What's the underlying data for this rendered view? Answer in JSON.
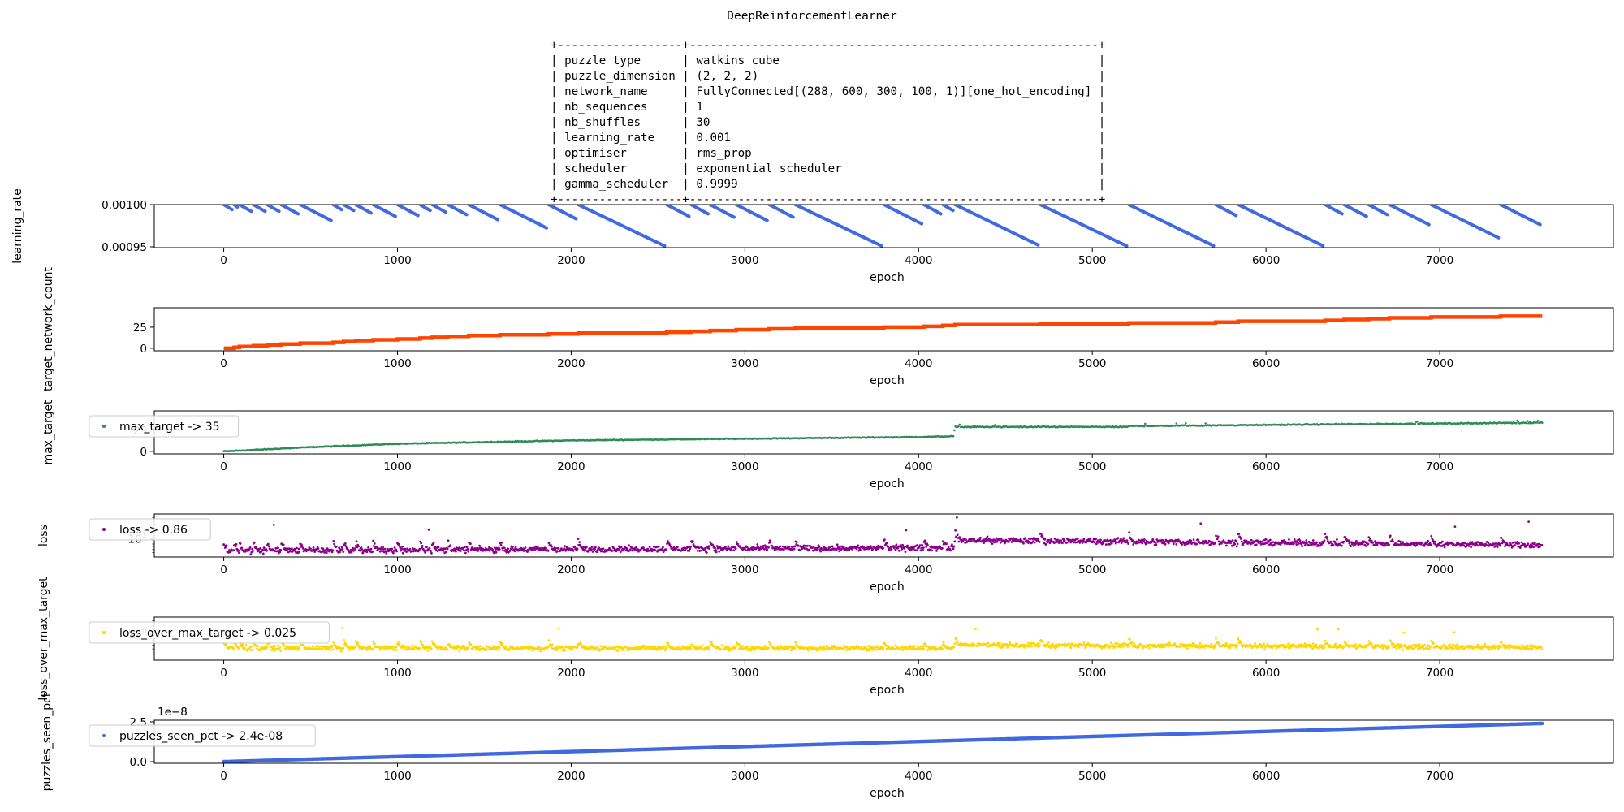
{
  "figure": {
    "title": "DeepReinforcementLearner",
    "params_table": [
      {
        "key": "puzzle_type",
        "value": "watkins_cube"
      },
      {
        "key": "puzzle_dimension",
        "value": "(2, 2, 2)"
      },
      {
        "key": "network_name",
        "value": "FullyConnected[(288, 600, 300, 100, 1)][one_hot_encoding]"
      },
      {
        "key": "nb_sequences",
        "value": "1"
      },
      {
        "key": "nb_shuffles",
        "value": "30"
      },
      {
        "key": "learning_rate",
        "value": "0.001"
      },
      {
        "key": "optimiser",
        "value": "rms_prop"
      },
      {
        "key": "scheduler",
        "value": "exponential_scheduler"
      },
      {
        "key": "gamma_scheduler",
        "value": "0.9999"
      }
    ]
  },
  "colors": {
    "learning_rate": "#4169e1",
    "target_network_count": "#ff4500",
    "max_target": "#2e8b57",
    "loss": "#8b008b",
    "loss_over_max_target": "#ffd700",
    "puzzles_seen_pct": "#4169e1"
  },
  "chart_data": [
    {
      "type": "scatter",
      "ylabel": "learning_rate",
      "xlabel": "epoch",
      "xlim": [
        -400,
        8000
      ],
      "ylim": [
        0.000949,
        0.001
      ],
      "xticks": [
        "0",
        "1000",
        "2000",
        "3000",
        "4000",
        "5000",
        "6000",
        "7000"
      ],
      "yticks": [
        {
          "value": 0.001,
          "label": "0.00100"
        },
        {
          "value": 0.00095,
          "label": "0.00095"
        }
      ],
      "segments": [
        [
          0,
          60
        ],
        [
          60,
          90
        ],
        [
          90,
          170
        ],
        [
          170,
          250
        ],
        [
          250,
          330
        ],
        [
          330,
          440
        ],
        [
          440,
          630
        ],
        [
          630,
          690
        ],
        [
          690,
          760
        ],
        [
          760,
          860
        ],
        [
          860,
          1000
        ],
        [
          1000,
          1130
        ],
        [
          1130,
          1200
        ],
        [
          1200,
          1290
        ],
        [
          1290,
          1410
        ],
        [
          1410,
          1590
        ],
        [
          1590,
          1870
        ],
        [
          1870,
          2040
        ],
        [
          2040,
          2550
        ],
        [
          2550,
          2690
        ],
        [
          2690,
          2800
        ],
        [
          2800,
          2950
        ],
        [
          2950,
          3140
        ],
        [
          3140,
          3290
        ],
        [
          3290,
          3800
        ],
        [
          3800,
          4030
        ],
        [
          4030,
          4140
        ],
        [
          4140,
          4210
        ],
        [
          4210,
          4700
        ],
        [
          4700,
          5210
        ],
        [
          5210,
          5710
        ],
        [
          5710,
          5840
        ],
        [
          5840,
          6340
        ],
        [
          6340,
          6450
        ],
        [
          6450,
          6590
        ],
        [
          6590,
          6710
        ],
        [
          6710,
          6950
        ],
        [
          6950,
          7350
        ],
        [
          7350,
          7590
        ]
      ],
      "legend": null
    },
    {
      "type": "scatter",
      "ylabel": "target_network_count",
      "xlabel": "epoch",
      "xlim": [
        -400,
        8000
      ],
      "ylim": [
        -3,
        48
      ],
      "xticks": [
        "0",
        "1000",
        "2000",
        "3000",
        "4000",
        "5000",
        "6000",
        "7000"
      ],
      "yticks": [
        {
          "value": 25,
          "label": "25"
        },
        {
          "value": 0,
          "label": "0"
        }
      ],
      "steps_at_x": [
        60,
        90,
        170,
        250,
        330,
        440,
        630,
        690,
        760,
        860,
        1000,
        1130,
        1200,
        1290,
        1410,
        1590,
        1870,
        2040,
        2550,
        2690,
        2800,
        2950,
        3140,
        3290,
        3800,
        4030,
        4140,
        4210,
        4700,
        5210,
        5710,
        5840,
        6340,
        6450,
        6590,
        6710,
        6950,
        7350
      ],
      "final_value": 38,
      "legend": null
    },
    {
      "type": "scatter",
      "ylabel": "max_target",
      "xlabel": "epoch",
      "xlim": [
        -400,
        8000
      ],
      "ylim": [
        -3,
        48
      ],
      "xticks": [
        "0",
        "1000",
        "2000",
        "3000",
        "4000",
        "5000",
        "6000",
        "7000"
      ],
      "yticks": [
        {
          "value": 25,
          "label": "25"
        },
        {
          "value": 0,
          "label": "0"
        }
      ],
      "points": [
        [
          0,
          0
        ],
        [
          500,
          5
        ],
        [
          1000,
          9
        ],
        [
          2000,
          13
        ],
        [
          3000,
          15
        ],
        [
          4000,
          17
        ],
        [
          4200,
          18
        ],
        [
          4210,
          29
        ],
        [
          5200,
          29
        ],
        [
          5210,
          30
        ],
        [
          7590,
          34
        ]
      ],
      "legend": "max_target -> 35"
    },
    {
      "type": "scatter",
      "ylabel": "loss",
      "xlabel": "epoch",
      "xlim": [
        -400,
        8000
      ],
      "ylim": [
        3,
        50
      ],
      "log_y": true,
      "xticks": [
        "0",
        "1000",
        "2000",
        "3000",
        "4000",
        "5000",
        "6000",
        "7000"
      ],
      "yticks": [
        {
          "value": 10,
          "label": "10^1"
        }
      ],
      "band_typical": [
        [
          0,
          4.5
        ],
        [
          4200,
          5.5
        ],
        [
          4210,
          9
        ],
        [
          7590,
          6.5
        ]
      ],
      "legend": "loss -> 0.86"
    },
    {
      "type": "scatter",
      "ylabel": "loss_over_max_target",
      "xlabel": "epoch",
      "xlim": [
        -400,
        8000
      ],
      "ylim": [
        0.12,
        4
      ],
      "log_y": true,
      "xticks": [
        "0",
        "1000",
        "2000",
        "3000",
        "4000",
        "5000",
        "6000",
        "7000"
      ],
      "yticks": [
        {
          "value": 1,
          "label": "10^0"
        }
      ],
      "band_typical": [
        [
          0,
          0.32
        ],
        [
          4200,
          0.32
        ],
        [
          4210,
          0.42
        ],
        [
          7590,
          0.34
        ]
      ],
      "legend": "loss_over_max_target -> 0.025"
    },
    {
      "type": "scatter",
      "ylabel": "puzzles_seen_pct",
      "xlabel": "epoch",
      "xlim": [
        -400,
        8000
      ],
      "ylim": [
        -0.1,
        2.6
      ],
      "offset_label": "1e−8",
      "xticks": [
        "0",
        "1000",
        "2000",
        "3000",
        "4000",
        "5000",
        "6000",
        "7000"
      ],
      "yticks": [
        {
          "value": 2.5,
          "label": "2.5"
        },
        {
          "value": 0,
          "label": "0.0"
        }
      ],
      "points": [
        [
          0,
          0
        ],
        [
          7590,
          2.4
        ]
      ],
      "legend": "puzzles_seen_pct -> 2.4e-08"
    }
  ]
}
